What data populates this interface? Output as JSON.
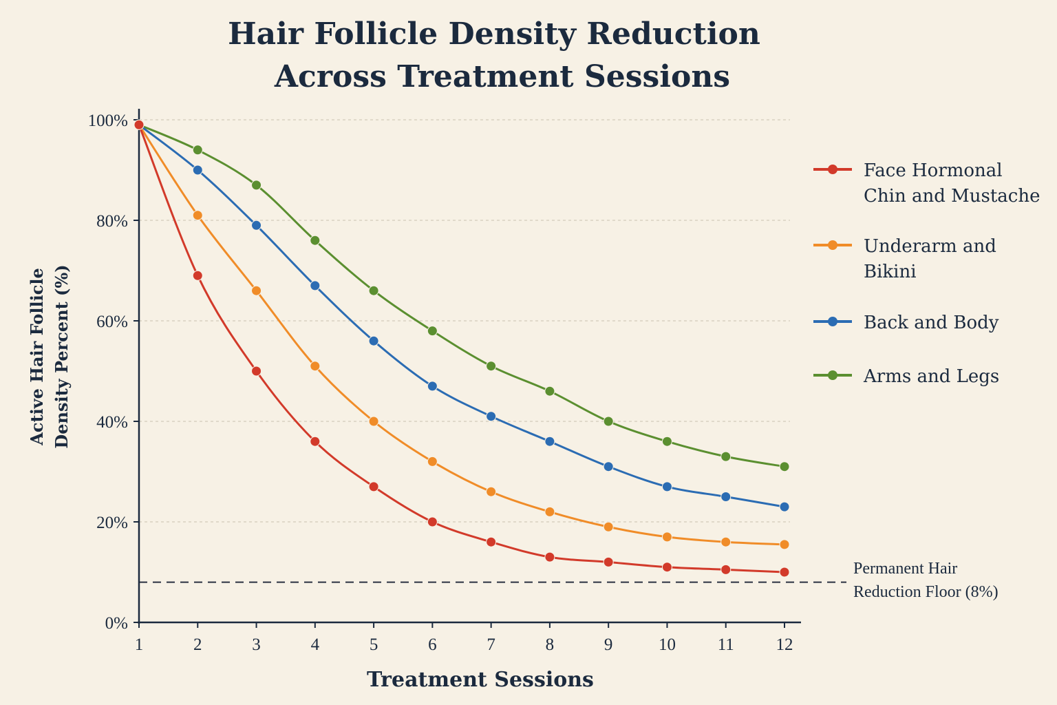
{
  "chart_data": {
    "type": "line",
    "title_lines": [
      "Hair Follicle Density Reduction",
      "Across Treatment Sessions"
    ],
    "xlabel": "Treatment Sessions",
    "ylabel_lines": [
      "Active Hair Follicle",
      "Density Percent (%)"
    ],
    "x": [
      1,
      2,
      3,
      4,
      5,
      6,
      7,
      8,
      9,
      10,
      11,
      12
    ],
    "y_ticks": [
      "0%",
      "20%",
      "40%",
      "60%",
      "80%",
      "100%"
    ],
    "y_tick_values": [
      0,
      20,
      40,
      60,
      80,
      100
    ],
    "xlim": [
      1,
      12
    ],
    "ylim": [
      0,
      100
    ],
    "grid": "horizontal dashed",
    "legend_position": "right",
    "series": [
      {
        "name_lines": [
          "Face Hormonal",
          "Chin and Mustache"
        ],
        "color": "#d23a2a",
        "values": [
          99,
          69,
          50,
          36,
          27,
          20,
          16,
          13,
          12,
          11,
          10.5,
          10
        ]
      },
      {
        "name_lines": [
          "Underarm and",
          "Bikini"
        ],
        "color": "#f08c28",
        "values": [
          99,
          81,
          66,
          51,
          40,
          32,
          26,
          22,
          19,
          17,
          16,
          15.5
        ]
      },
      {
        "name_lines": [
          "Back and Body"
        ],
        "color": "#2b6cb3",
        "values": [
          99,
          90,
          79,
          67,
          56,
          47,
          41,
          36,
          31,
          27,
          25,
          23
        ]
      },
      {
        "name_lines": [
          "Arms and Legs"
        ],
        "color": "#5b8f30",
        "values": [
          99,
          94,
          87,
          76,
          66,
          58,
          51,
          46,
          40,
          36,
          33,
          31
        ]
      }
    ],
    "reference_line": {
      "value": 8,
      "label_lines": [
        "Permanent Hair",
        "Reduction Floor (8%)"
      ]
    }
  }
}
